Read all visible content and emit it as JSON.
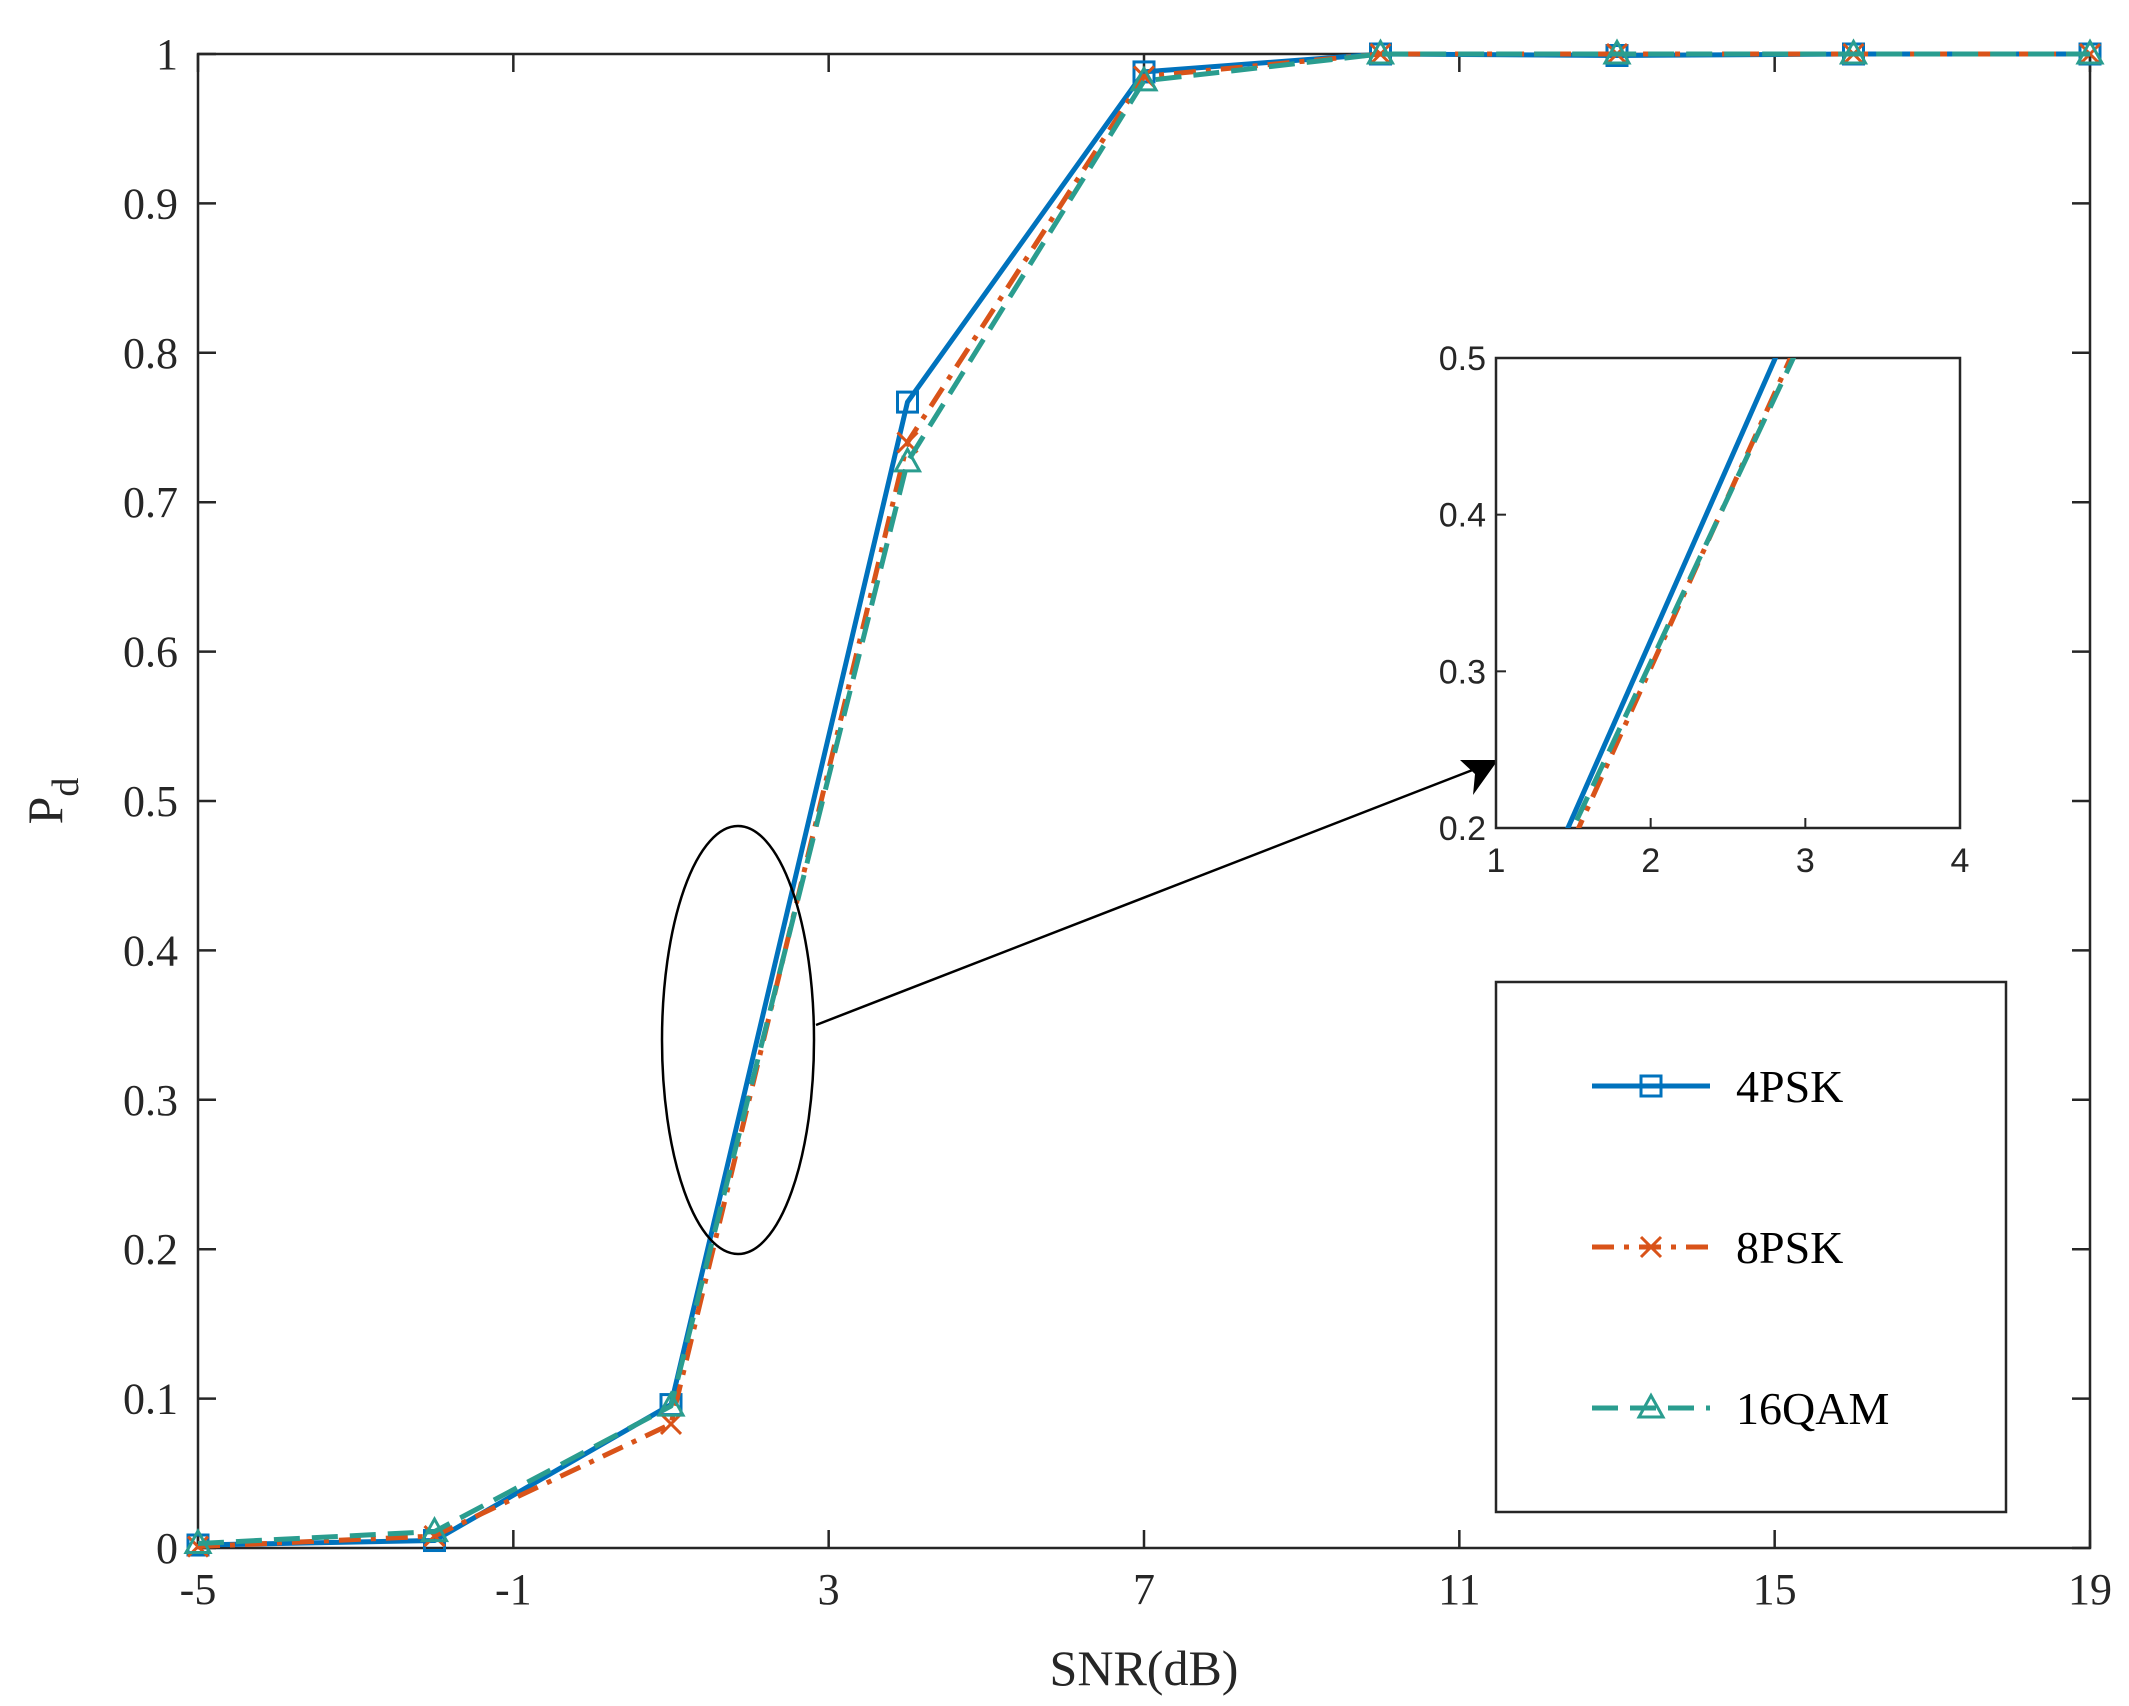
{
  "chart_data": {
    "type": "line",
    "title": "",
    "xlabel": "SNR(dB)",
    "ylabel_main": "P",
    "ylabel_sub": "d",
    "xlim": [
      -5,
      19
    ],
    "ylim": [
      0,
      1
    ],
    "xticks": [
      -5,
      -1,
      3,
      7,
      11,
      15,
      19
    ],
    "yticks": [
      0,
      0.1,
      0.2,
      0.3,
      0.4,
      0.5,
      0.6,
      0.7,
      0.8,
      0.9,
      1
    ],
    "ytick_labels": [
      "0",
      "0.1",
      "0.2",
      "0.3",
      "0.4",
      "0.5",
      "0.6",
      "0.7",
      "0.8",
      "0.9",
      "1"
    ],
    "grid": false,
    "legend_position": "bottom-right",
    "x": [
      -5,
      -2,
      1,
      4,
      7,
      10,
      13,
      16,
      19
    ],
    "series": [
      {
        "name": "4PSK",
        "color": "#0072BD",
        "dash": "solid",
        "marker": "square",
        "values": [
          0.002,
          0.005,
          0.096,
          0.767,
          0.988,
          1.0,
          0.999,
          1.0,
          1.0
        ]
      },
      {
        "name": "8PSK",
        "color": "#D95319",
        "dash": "dashdot",
        "marker": "x",
        "values": [
          0.001,
          0.008,
          0.083,
          0.74,
          0.985,
          1.0,
          1.0,
          1.0,
          1.0
        ]
      },
      {
        "name": "16QAM",
        "color": "#2A9D8F",
        "dash": "dashed",
        "marker": "triangle",
        "values": [
          0.003,
          0.011,
          0.095,
          0.727,
          0.982,
          1.0,
          1.0,
          1.0,
          1.0
        ]
      }
    ],
    "inset": {
      "xlim": [
        1,
        4
      ],
      "ylim": [
        0.2,
        0.5
      ],
      "xticks": [
        1,
        2,
        3,
        4
      ],
      "yticks": [
        0.2,
        0.3,
        0.4,
        0.5
      ],
      "ytick_labels": [
        "0.2",
        "0.3",
        "0.4",
        "0.5"
      ]
    },
    "zoom_region": {
      "x_center": 2.35,
      "y_center": 0.34
    }
  }
}
